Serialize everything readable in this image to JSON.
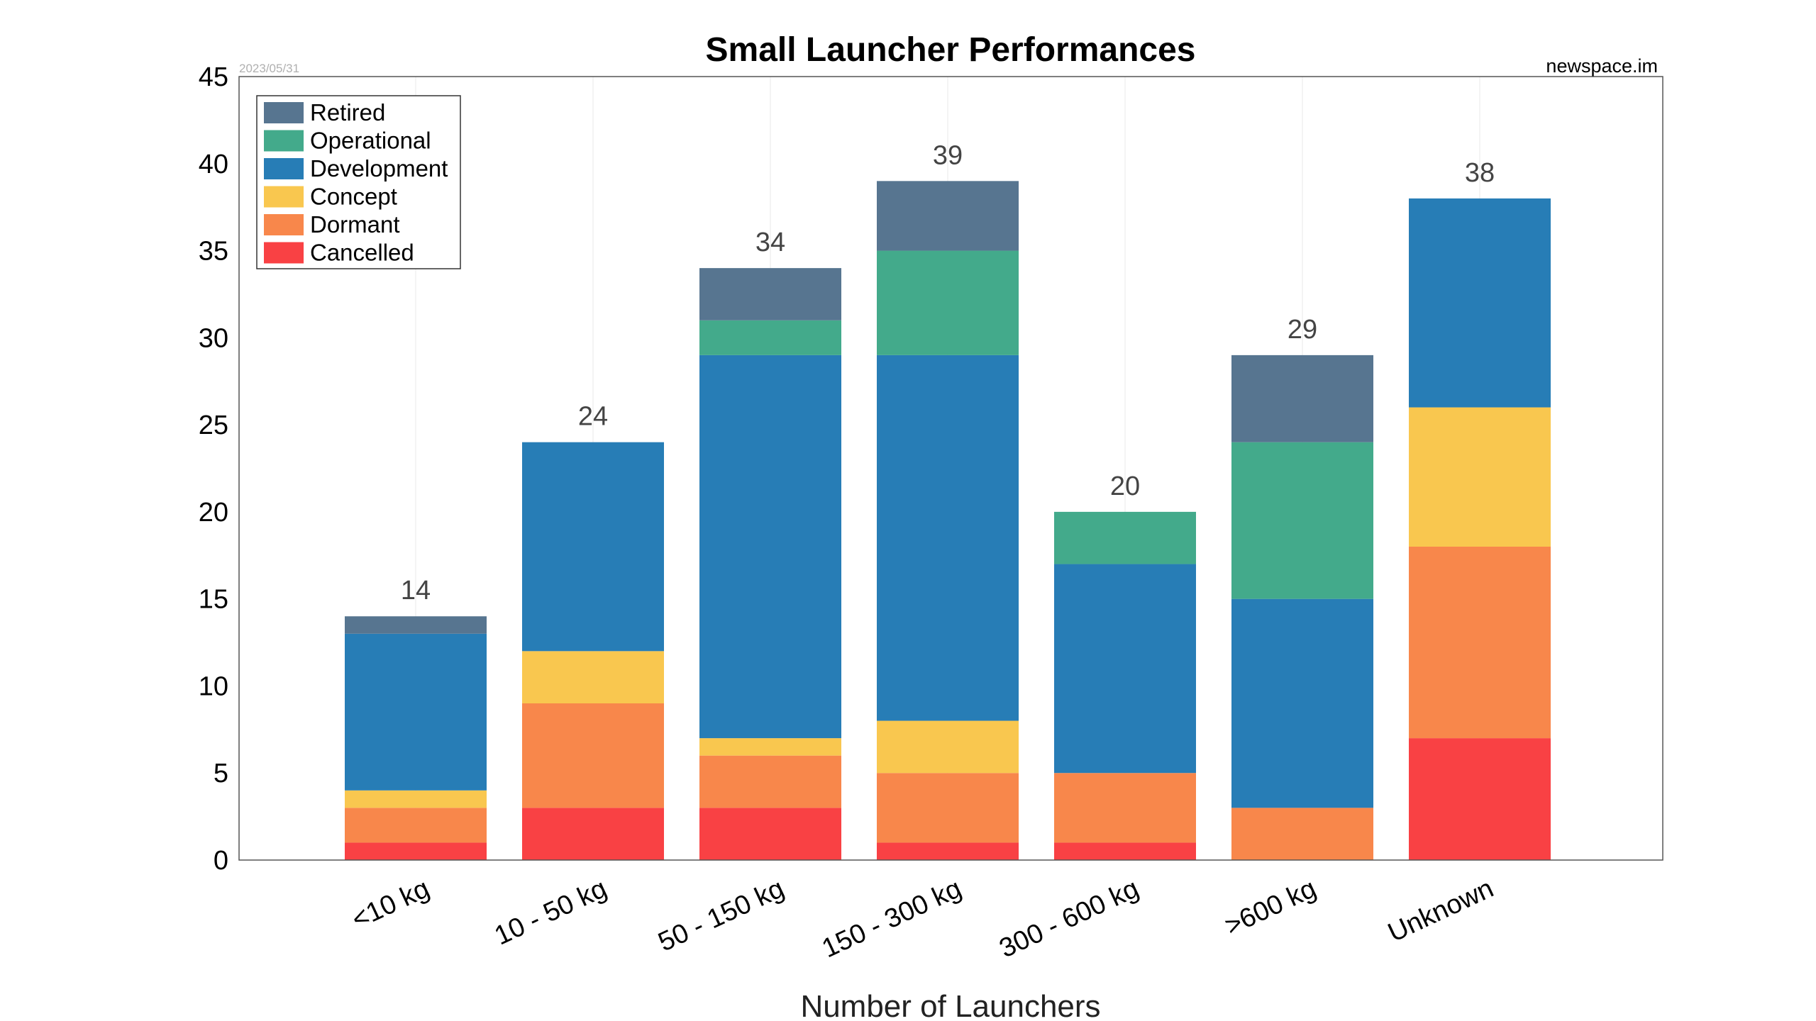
{
  "chart_data": {
    "type": "bar",
    "stacked": true,
    "title": "Small Launcher Performances",
    "date_note": "2023/05/31",
    "source": "newspace.im",
    "xlabel": "Number of Launchers",
    "ylabel": "",
    "ylim": [
      0,
      45
    ],
    "yticks": [
      0,
      5,
      10,
      15,
      20,
      25,
      30,
      35,
      40,
      45
    ],
    "grid": true,
    "legend_position": "top-left",
    "categories": [
      "<10 kg",
      "10 - 50 kg",
      "50 - 150 kg",
      "150 - 300 kg",
      "300 - 600 kg",
      ">600 kg",
      "Unknown"
    ],
    "totals": [
      14,
      24,
      34,
      39,
      20,
      29,
      38
    ],
    "series": [
      {
        "name": "Cancelled",
        "color": "#f94144",
        "values": [
          1,
          3,
          3,
          1,
          1,
          0,
          7
        ]
      },
      {
        "name": "Dormant",
        "color": "#f8874b",
        "values": [
          2,
          6,
          3,
          4,
          4,
          3,
          11
        ]
      },
      {
        "name": "Concept",
        "color": "#f9c74f",
        "values": [
          1,
          3,
          1,
          3,
          0,
          0,
          8
        ]
      },
      {
        "name": "Development",
        "color": "#277db6",
        "values": [
          9,
          12,
          22,
          21,
          12,
          12,
          12
        ]
      },
      {
        "name": "Operational",
        "color": "#43aa8b",
        "values": [
          0,
          0,
          2,
          6,
          3,
          9,
          0
        ]
      },
      {
        "name": "Retired",
        "color": "#577590",
        "values": [
          1,
          0,
          3,
          4,
          0,
          5,
          0
        ]
      }
    ]
  }
}
